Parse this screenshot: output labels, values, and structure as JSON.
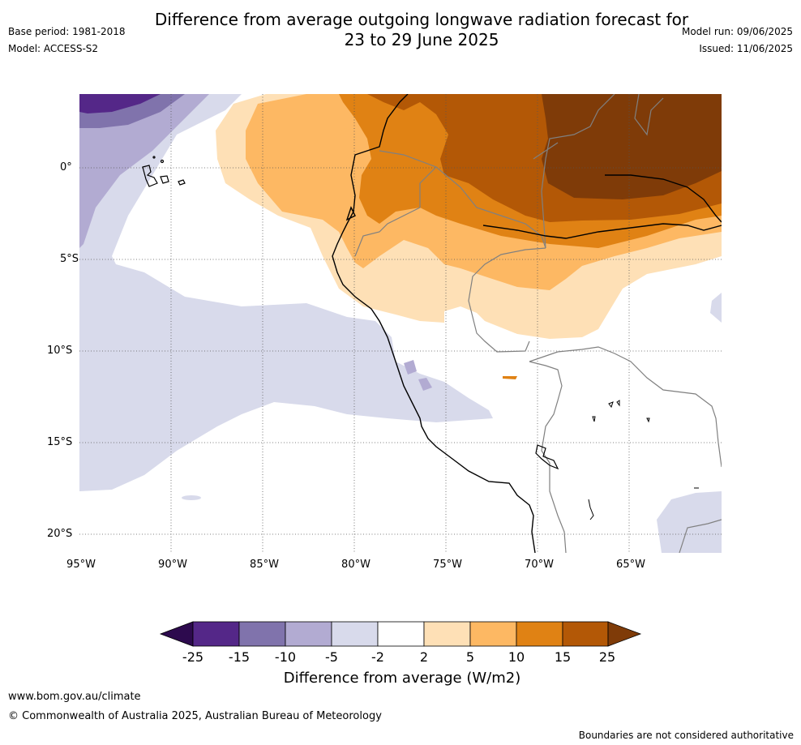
{
  "header": {
    "title_line1": "Difference from average outgoing longwave radiation forecast for",
    "title_line2": "23 to 29 June 2025",
    "base_period": "Base period: 1981-2018",
    "model": "Model: ACCESS-S2",
    "model_run": "Model run: 09/06/2025",
    "issued": "Issued: 11/06/2025"
  },
  "map": {
    "lat_labels": [
      "0°",
      "5°S",
      "10°S",
      "15°S",
      "20°S"
    ],
    "lon_labels": [
      "95°W",
      "90°W",
      "85°W",
      "80°W",
      "75°W",
      "70°W",
      "65°W"
    ],
    "region_visible": "Eastern Pacific / western South America (Ecuador, Peru, Bolivia, western Brazil)"
  },
  "colorbar": {
    "title": "Difference from average (W/m2)",
    "ticks": [
      "-25",
      "-15",
      "-10",
      "-5",
      "-2",
      "2",
      "5",
      "10",
      "15",
      "25"
    ],
    "colors": {
      "below_min": "#2d0a4e",
      "n25_n15": "#542788",
      "n15_n10": "#8073ac",
      "n10_n5": "#b2abd2",
      "n5_n2": "#d8daeb",
      "n2_2": "#ffffff",
      "p2_p5": "#fee0b6",
      "p5_p10": "#fdb863",
      "p10_p15": "#e08214",
      "p15_p25": "#b35806",
      "above_max": "#7f3b08"
    }
  },
  "footer": {
    "website": "www.bom.gov.au/climate",
    "copyright": "© Commonwealth of Australia 2025, Australian Bureau of Meteorology",
    "note": "Boundaries are not considered authoritative"
  }
}
